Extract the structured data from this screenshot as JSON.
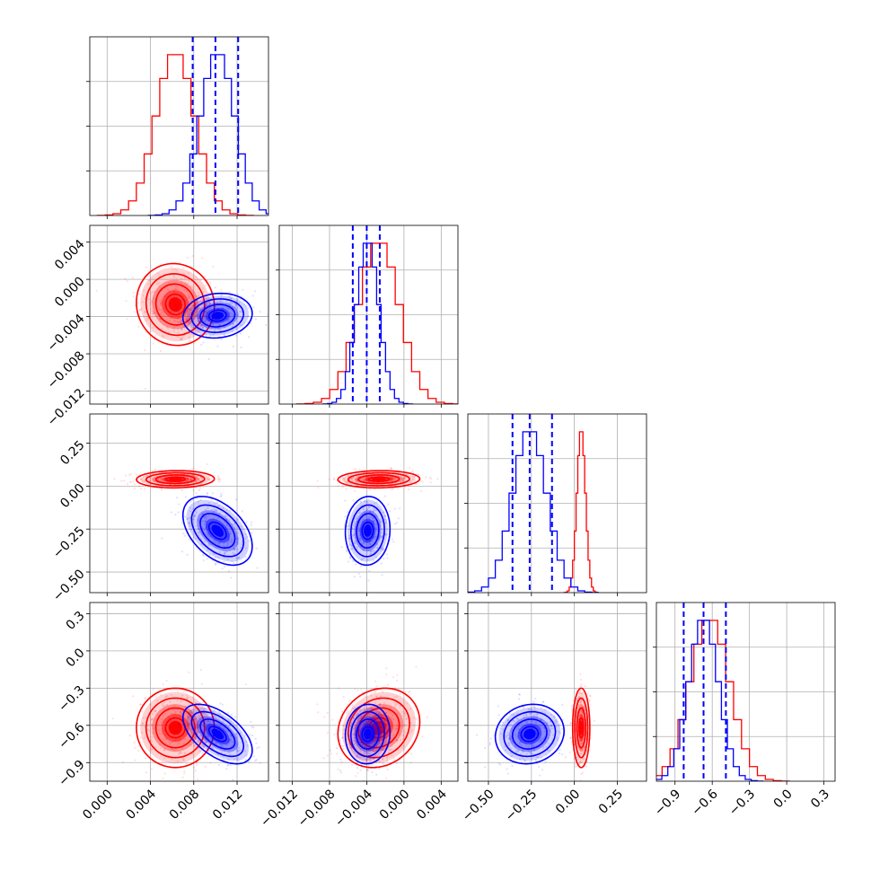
{
  "chart_data": {
    "type": "corner",
    "variables": [
      {
        "ticks": [
          0.0,
          0.004,
          0.008,
          0.012
        ],
        "tick_labels": [
          "0.000",
          "0.004",
          "0.008",
          "0.012"
        ],
        "range": [
          -0.0016,
          0.0149
        ]
      },
      {
        "ticks": [
          -0.012,
          -0.008,
          -0.004,
          0.0,
          0.004
        ],
        "tick_labels": [
          "−0.012",
          "−0.008",
          "−0.004",
          "0.000",
          "0.004"
        ],
        "range": [
          -0.0134,
          0.0058
        ]
      },
      {
        "ticks": [
          -0.5,
          -0.25,
          0.0,
          0.25
        ],
        "tick_labels": [
          "−0.50",
          "−0.25",
          "0.00",
          "0.25"
        ],
        "range": [
          -0.62,
          0.42
        ]
      },
      {
        "ticks": [
          -0.9,
          -0.6,
          -0.3,
          0.0,
          0.3
        ],
        "tick_labels": [
          "−0.9",
          "−0.6",
          "−0.3",
          "0.0",
          "0.3"
        ],
        "range": [
          -1.05,
          0.39
        ]
      }
    ],
    "series": [
      {
        "color": "#ff0000",
        "means": [
          0.0063,
          -0.0027,
          0.04,
          -0.62
        ],
        "stds": [
          0.0018,
          0.0022,
          0.025,
          0.16
        ],
        "corr": [
          [
            1,
            -0.05,
            0.05,
            0.0
          ],
          [
            -0.05,
            1,
            0.05,
            0.15
          ],
          [
            0.05,
            0.05,
            1,
            0.0
          ],
          [
            0.0,
            0.15,
            0.0,
            1
          ]
        ]
      },
      {
        "color": "#0000ff",
        "means": [
          0.0102,
          -0.0039,
          -0.26,
          -0.67
        ],
        "stds": [
          0.0016,
          0.0012,
          0.1,
          0.12
        ],
        "corr": [
          [
            1,
            0.1,
            -0.45,
            -0.55
          ],
          [
            0.1,
            1,
            0.05,
            0.05
          ],
          [
            -0.45,
            0.05,
            1,
            0.1
          ],
          [
            -0.55,
            0.05,
            0.1,
            1
          ]
        ]
      }
    ],
    "quantile_lines": {
      "color": "#0000ff",
      "values": [
        [
          0.0079,
          0.01,
          0.0121
        ],
        [
          -0.0055,
          -0.004,
          -0.0026
        ],
        [
          -0.36,
          -0.26,
          -0.13
        ],
        [
          -0.83,
          -0.67,
          -0.49
        ]
      ]
    },
    "grid": true,
    "legend": "none"
  }
}
